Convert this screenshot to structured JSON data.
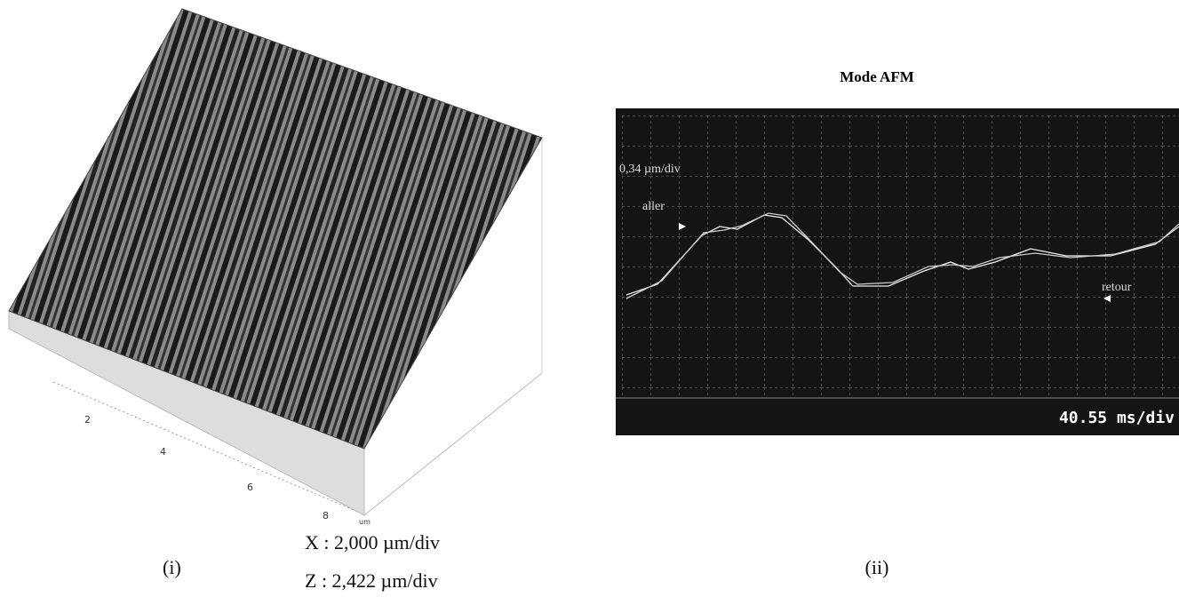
{
  "left": {
    "axis_ticks": [
      "2",
      "4",
      "6",
      "8"
    ],
    "axis_unit": "um",
    "x_scale": "X : 2,000 µm/div",
    "z_scale": "Z : 2,422 µm/div",
    "label": "(i)"
  },
  "right": {
    "title": "Mode AFM",
    "y_scale": "0,34 µm/div",
    "trace_labels": [
      "aller",
      "retour"
    ],
    "time_scale": "40.55 ms/div",
    "label": "(ii)"
  }
}
